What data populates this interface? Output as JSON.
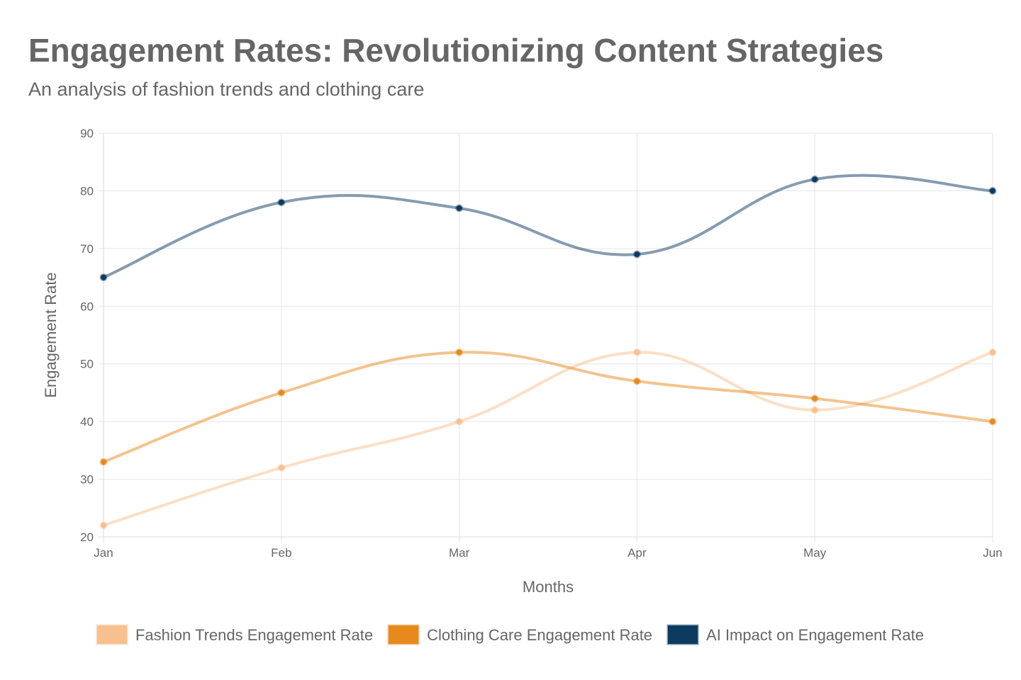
{
  "chart_data": {
    "type": "line",
    "title": "Engagement Rates: Revolutionizing Content Strategies",
    "subtitle": "An analysis of fashion trends and clothing care",
    "xlabel": "Months",
    "ylabel": "Engagement Rate",
    "categories": [
      "Jan",
      "Feb",
      "Mar",
      "Apr",
      "May",
      "Jun"
    ],
    "ylim": [
      20,
      90
    ],
    "yticks": [
      "20",
      "30",
      "40",
      "50",
      "60",
      "70",
      "80",
      "90"
    ],
    "grid": true,
    "legend_position": "bottom",
    "series": [
      {
        "name": "Fashion Trends Engagement Rate",
        "values": [
          22,
          32,
          40,
          52,
          42,
          52
        ],
        "color": "#F8C08F"
      },
      {
        "name": "Clothing Care Engagement Rate",
        "values": [
          33,
          45,
          52,
          47,
          44,
          40
        ],
        "color": "#E68A1E"
      },
      {
        "name": "AI Impact on Engagement Rate",
        "values": [
          65,
          78,
          77,
          69,
          82,
          80
        ],
        "color": "#0D3A5F"
      }
    ]
  }
}
